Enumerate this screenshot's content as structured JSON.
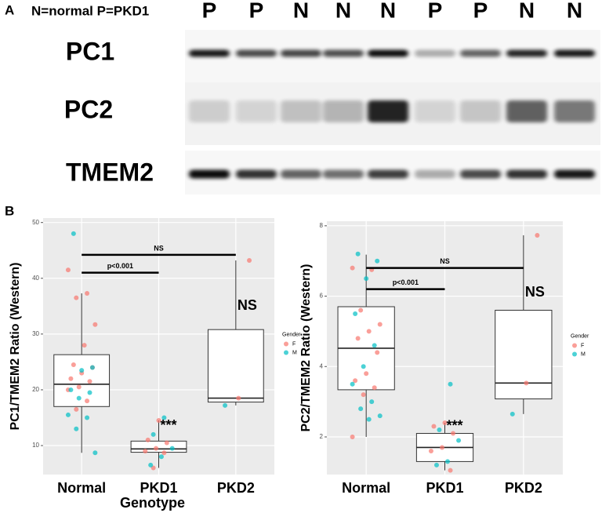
{
  "blot": {
    "panel_label": "A",
    "legend": "N=normal P=PKD1",
    "lanes": [
      "P",
      "P",
      "N",
      "N",
      "N",
      "P",
      "P",
      "N",
      "N"
    ],
    "rows": [
      "PC1",
      "PC2",
      "TMEM2"
    ]
  },
  "panel_b_label": "B",
  "chart_data": [
    {
      "type": "box",
      "y_label": "PC1/TMEM2 Ratio (Western)",
      "x_label": "Genotype",
      "categories": [
        "Normal",
        "PKD1",
        "PKD2"
      ],
      "ylim": [
        4.8,
        50.8
      ],
      "yticks": [
        10,
        20,
        30,
        40,
        50
      ],
      "grid": true,
      "boxes": [
        {
          "whisker_low": 8.7,
          "q1": 17,
          "median": 21,
          "q3": 26.3,
          "whisker_high": 37.3
        },
        {
          "whisker_low": 6,
          "q1": 8.8,
          "median": 9.4,
          "q3": 10.8,
          "whisker_high": 14.5
        },
        {
          "whisker_low": 17.2,
          "q1": 17.8,
          "median": 18.5,
          "q3": 30.8,
          "whisker_high": 43.2
        }
      ],
      "legend_title": "Gender",
      "series": [
        {
          "name": "F",
          "color": "#F8766D",
          "values": [
            [
              41.5,
              37.3,
              36.5,
              31.7,
              28,
              24.5,
              24,
              23,
              22,
              21.5,
              20.5,
              20,
              18,
              16.5
            ],
            [
              14.5,
              11,
              10.5,
              9.5,
              9,
              8.7,
              6
            ],
            [
              43.2,
              18.5
            ]
          ]
        },
        {
          "name": "M",
          "color": "#00BFC4",
          "values": [
            [
              48,
              24,
              23.5,
              20,
              19.5,
              18.5,
              15.5,
              15,
              13,
              8.7
            ],
            [
              15,
              12,
              9.5,
              8,
              6.5
            ],
            [
              17.2
            ]
          ]
        }
      ],
      "brackets": [
        {
          "text": "p<0.001",
          "y": 41,
          "span": [
            "Normal",
            "PKD1"
          ]
        },
        {
          "text": "NS",
          "y": 44.2,
          "span": [
            "Normal",
            "PKD2"
          ]
        }
      ],
      "marks": [
        {
          "text": "***",
          "y": 13.5,
          "category": "PKD1"
        },
        {
          "text": "NS",
          "y": 35,
          "category": "PKD2"
        }
      ]
    },
    {
      "type": "box",
      "y_label": "PC2/TMEM2 Ratio (Western)",
      "categories": [
        "Normal",
        "PKD1",
        "PKD2"
      ],
      "ylim": [
        0.93,
        8.13
      ],
      "yticks": [
        2,
        4,
        6,
        8
      ],
      "grid": true,
      "boxes": [
        {
          "whisker_low": 2,
          "q1": 3.34,
          "median": 4.52,
          "q3": 5.7,
          "whisker_high": 7.18
        },
        {
          "whisker_low": 1.05,
          "q1": 1.3,
          "median": 1.7,
          "q3": 2.1,
          "whisker_high": 2.4
        },
        {
          "whisker_low": 2.65,
          "q1": 3.08,
          "median": 3.53,
          "q3": 5.6,
          "whisker_high": 7.73
        }
      ],
      "legend_title": "Gender",
      "series": [
        {
          "name": "F",
          "color": "#F8766D",
          "values": [
            [
              6.8,
              6.75,
              5.6,
              5.2,
              5,
              4.8,
              4.4,
              3.8,
              3.6,
              3.4,
              3.2,
              2
            ],
            [
              2.4,
              2.3,
              2.1,
              1.7,
              1.6,
              1.05
            ],
            [
              7.73,
              3.53
            ]
          ]
        },
        {
          "name": "M",
          "color": "#00BFC4",
          "values": [
            [
              7.2,
              7,
              6.5,
              5.5,
              4.6,
              4,
              3.5,
              3,
              2.8,
              2.6,
              2.5
            ],
            [
              3.5,
              2.2,
              1.9,
              1.3,
              1.2
            ],
            [
              2.65
            ]
          ]
        }
      ],
      "brackets": [
        {
          "text": "p<0.001",
          "y": 6.2,
          "span": [
            "Normal",
            "PKD1"
          ]
        },
        {
          "text": "NS",
          "y": 6.8,
          "span": [
            "Normal",
            "PKD2"
          ]
        }
      ],
      "marks": [
        {
          "text": "***",
          "y": 2.3,
          "category": "PKD1"
        },
        {
          "text": "NS",
          "y": 6.1,
          "category": "PKD2"
        }
      ]
    }
  ]
}
